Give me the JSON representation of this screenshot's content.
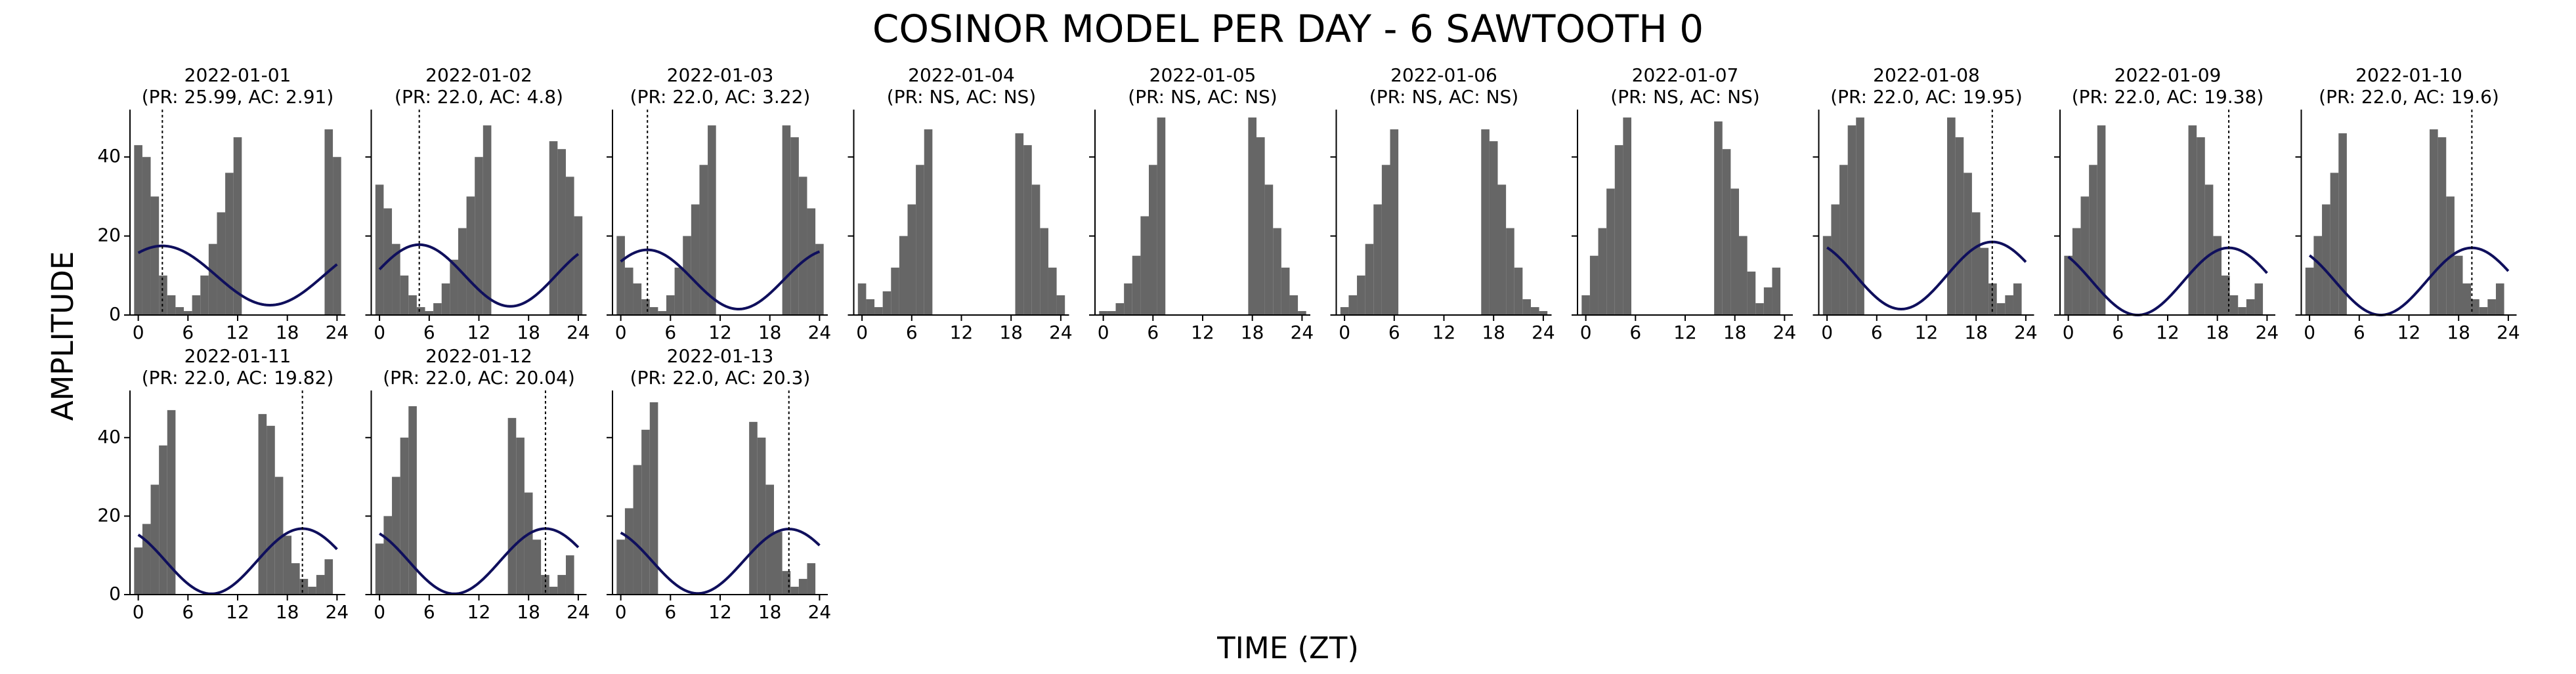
{
  "figure": {
    "title": "COSINOR MODEL PER DAY - 6 SAWTOOTH 0",
    "xlabel": "TIME (ZT)",
    "ylabel": "AMPLITUDE"
  },
  "colors": {
    "bar": "#666666",
    "curve": "#0f0f5c",
    "axis": "#000000",
    "acrophase_line": "#000000"
  },
  "chart_data": [
    {
      "type": "bar",
      "title": "2022-01-01",
      "subtitle": "(PR: 25.99, AC: 2.91)",
      "bars": [
        {
          "x": 0,
          "y": 43
        },
        {
          "x": 1,
          "y": 40
        },
        {
          "x": 2,
          "y": 30
        },
        {
          "x": 3,
          "y": 10
        },
        {
          "x": 4,
          "y": 5
        },
        {
          "x": 5,
          "y": 2
        },
        {
          "x": 6,
          "y": 1
        },
        {
          "x": 7,
          "y": 5
        },
        {
          "x": 8,
          "y": 10
        },
        {
          "x": 9,
          "y": 18
        },
        {
          "x": 10,
          "y": 26
        },
        {
          "x": 11,
          "y": 36
        },
        {
          "x": 12,
          "y": 45
        },
        {
          "x": 23,
          "y": 47
        },
        {
          "x": 24,
          "y": 40
        }
      ],
      "cosinor": {
        "mesor": 10,
        "amplitude": 7.5,
        "acrophase": 2.91,
        "period": 25.99
      },
      "xlim": [
        -1,
        25
      ],
      "ylim": [
        0,
        52
      ],
      "xticks": [
        "0",
        "6",
        "12",
        "18",
        "24"
      ],
      "yticks": [
        "0",
        "20",
        "40"
      ]
    },
    {
      "type": "bar",
      "title": "2022-01-02",
      "subtitle": "(PR: 22.0, AC: 4.8)",
      "bars": [
        {
          "x": 0,
          "y": 33
        },
        {
          "x": 1,
          "y": 27
        },
        {
          "x": 2,
          "y": 18
        },
        {
          "x": 3,
          "y": 10
        },
        {
          "x": 4,
          "y": 5
        },
        {
          "x": 5,
          "y": 2
        },
        {
          "x": 6,
          "y": 1
        },
        {
          "x": 7,
          "y": 3
        },
        {
          "x": 8,
          "y": 8
        },
        {
          "x": 9,
          "y": 14
        },
        {
          "x": 10,
          "y": 22
        },
        {
          "x": 11,
          "y": 30
        },
        {
          "x": 12,
          "y": 40
        },
        {
          "x": 13,
          "y": 48
        },
        {
          "x": 21,
          "y": 44
        },
        {
          "x": 22,
          "y": 42
        },
        {
          "x": 23,
          "y": 35
        },
        {
          "x": 24,
          "y": 25
        }
      ],
      "cosinor": {
        "mesor": 10,
        "amplitude": 7.8,
        "acrophase": 4.8,
        "period": 22.0
      },
      "xlim": [
        -1,
        25
      ],
      "ylim": [
        0,
        52
      ],
      "xticks": [
        "0",
        "6",
        "12",
        "18",
        "24"
      ],
      "yticks": []
    },
    {
      "type": "bar",
      "title": "2022-01-03",
      "subtitle": "(PR: 22.0, AC: 3.22)",
      "bars": [
        {
          "x": 0,
          "y": 20
        },
        {
          "x": 1,
          "y": 12
        },
        {
          "x": 2,
          "y": 8
        },
        {
          "x": 3,
          "y": 4
        },
        {
          "x": 4,
          "y": 2
        },
        {
          "x": 5,
          "y": 1
        },
        {
          "x": 6,
          "y": 5
        },
        {
          "x": 7,
          "y": 12
        },
        {
          "x": 8,
          "y": 20
        },
        {
          "x": 9,
          "y": 28
        },
        {
          "x": 10,
          "y": 38
        },
        {
          "x": 11,
          "y": 48
        },
        {
          "x": 20,
          "y": 48
        },
        {
          "x": 21,
          "y": 45
        },
        {
          "x": 22,
          "y": 35
        },
        {
          "x": 23,
          "y": 27
        },
        {
          "x": 24,
          "y": 18
        }
      ],
      "cosinor": {
        "mesor": 9,
        "amplitude": 7.5,
        "acrophase": 3.22,
        "period": 22.0
      },
      "xlim": [
        -1,
        25
      ],
      "ylim": [
        0,
        52
      ],
      "xticks": [
        "0",
        "6",
        "12",
        "18",
        "24"
      ],
      "yticks": []
    },
    {
      "type": "bar",
      "title": "2022-01-04",
      "subtitle": "(PR: NS, AC: NS)",
      "bars": [
        {
          "x": 0,
          "y": 8
        },
        {
          "x": 1,
          "y": 4
        },
        {
          "x": 2,
          "y": 2
        },
        {
          "x": 3,
          "y": 6
        },
        {
          "x": 4,
          "y": 12
        },
        {
          "x": 5,
          "y": 20
        },
        {
          "x": 6,
          "y": 28
        },
        {
          "x": 7,
          "y": 38
        },
        {
          "x": 8,
          "y": 47
        },
        {
          "x": 19,
          "y": 46
        },
        {
          "x": 20,
          "y": 43
        },
        {
          "x": 21,
          "y": 33
        },
        {
          "x": 22,
          "y": 22
        },
        {
          "x": 23,
          "y": 12
        },
        {
          "x": 24,
          "y": 5
        }
      ],
      "cosinor": null,
      "xlim": [
        -1,
        25
      ],
      "ylim": [
        0,
        52
      ],
      "xticks": [
        "0",
        "6",
        "12",
        "18",
        "24"
      ],
      "yticks": []
    },
    {
      "type": "bar",
      "title": "2022-01-05",
      "subtitle": "(PR: NS, AC: NS)",
      "bars": [
        {
          "x": 0,
          "y": 1
        },
        {
          "x": 1,
          "y": 1
        },
        {
          "x": 2,
          "y": 3
        },
        {
          "x": 3,
          "y": 8
        },
        {
          "x": 4,
          "y": 15
        },
        {
          "x": 5,
          "y": 25
        },
        {
          "x": 6,
          "y": 38
        },
        {
          "x": 7,
          "y": 50
        },
        {
          "x": 18,
          "y": 50
        },
        {
          "x": 19,
          "y": 45
        },
        {
          "x": 20,
          "y": 33
        },
        {
          "x": 21,
          "y": 22
        },
        {
          "x": 22,
          "y": 12
        },
        {
          "x": 23,
          "y": 5
        },
        {
          "x": 24,
          "y": 1
        }
      ],
      "cosinor": null,
      "xlim": [
        -1,
        25
      ],
      "ylim": [
        0,
        52
      ],
      "xticks": [
        "0",
        "6",
        "12",
        "18",
        "24"
      ],
      "yticks": []
    },
    {
      "type": "bar",
      "title": "2022-01-06",
      "subtitle": "(PR: NS, AC: NS)",
      "bars": [
        {
          "x": 0,
          "y": 2
        },
        {
          "x": 1,
          "y": 5
        },
        {
          "x": 2,
          "y": 10
        },
        {
          "x": 3,
          "y": 18
        },
        {
          "x": 4,
          "y": 28
        },
        {
          "x": 5,
          "y": 38
        },
        {
          "x": 6,
          "y": 47
        },
        {
          "x": 17,
          "y": 47
        },
        {
          "x": 18,
          "y": 44
        },
        {
          "x": 19,
          "y": 33
        },
        {
          "x": 20,
          "y": 22
        },
        {
          "x": 21,
          "y": 12
        },
        {
          "x": 22,
          "y": 4
        },
        {
          "x": 23,
          "y": 2
        },
        {
          "x": 24,
          "y": 1
        }
      ],
      "cosinor": null,
      "xlim": [
        -1,
        25
      ],
      "ylim": [
        0,
        52
      ],
      "xticks": [
        "0",
        "6",
        "12",
        "18",
        "24"
      ],
      "yticks": []
    },
    {
      "type": "bar",
      "title": "2022-01-07",
      "subtitle": "(PR: NS, AC: NS)",
      "bars": [
        {
          "x": 0,
          "y": 5
        },
        {
          "x": 1,
          "y": 15
        },
        {
          "x": 2,
          "y": 22
        },
        {
          "x": 3,
          "y": 32
        },
        {
          "x": 4,
          "y": 43
        },
        {
          "x": 5,
          "y": 50
        },
        {
          "x": 16,
          "y": 49
        },
        {
          "x": 17,
          "y": 42
        },
        {
          "x": 18,
          "y": 32
        },
        {
          "x": 19,
          "y": 20
        },
        {
          "x": 20,
          "y": 11
        },
        {
          "x": 21,
          "y": 3
        },
        {
          "x": 22,
          "y": 7
        },
        {
          "x": 23,
          "y": 12
        }
      ],
      "cosinor": null,
      "xlim": [
        -1,
        25
      ],
      "ylim": [
        0,
        52
      ],
      "xticks": [
        "0",
        "6",
        "12",
        "18",
        "24"
      ],
      "yticks": []
    },
    {
      "type": "bar",
      "title": "2022-01-08",
      "subtitle": "(PR: 22.0, AC: 19.95)",
      "bars": [
        {
          "x": 0,
          "y": 20
        },
        {
          "x": 1,
          "y": 28
        },
        {
          "x": 2,
          "y": 38
        },
        {
          "x": 3,
          "y": 48
        },
        {
          "x": 4,
          "y": 50
        },
        {
          "x": 15,
          "y": 50
        },
        {
          "x": 16,
          "y": 45
        },
        {
          "x": 17,
          "y": 36
        },
        {
          "x": 18,
          "y": 26
        },
        {
          "x": 19,
          "y": 17
        },
        {
          "x": 20,
          "y": 8
        },
        {
          "x": 21,
          "y": 3
        },
        {
          "x": 22,
          "y": 5
        },
        {
          "x": 23,
          "y": 8
        }
      ],
      "cosinor": {
        "mesor": 10,
        "amplitude": 8.5,
        "acrophase": 19.95,
        "period": 22.0
      },
      "xlim": [
        -1,
        25
      ],
      "ylim": [
        0,
        52
      ],
      "xticks": [
        "0",
        "6",
        "12",
        "18",
        "24"
      ],
      "yticks": []
    },
    {
      "type": "bar",
      "title": "2022-01-09",
      "subtitle": "(PR: 22.0, AC: 19.38)",
      "bars": [
        {
          "x": 0,
          "y": 15
        },
        {
          "x": 1,
          "y": 22
        },
        {
          "x": 2,
          "y": 30
        },
        {
          "x": 3,
          "y": 38
        },
        {
          "x": 4,
          "y": 48
        },
        {
          "x": 15,
          "y": 48
        },
        {
          "x": 16,
          "y": 45
        },
        {
          "x": 17,
          "y": 33
        },
        {
          "x": 18,
          "y": 20
        },
        {
          "x": 19,
          "y": 10
        },
        {
          "x": 20,
          "y": 5
        },
        {
          "x": 21,
          "y": 2
        },
        {
          "x": 22,
          "y": 4
        },
        {
          "x": 23,
          "y": 8
        }
      ],
      "cosinor": {
        "mesor": 8.5,
        "amplitude": 8.5,
        "acrophase": 19.38,
        "period": 22.0
      },
      "xlim": [
        -1,
        25
      ],
      "ylim": [
        0,
        52
      ],
      "xticks": [
        "0",
        "6",
        "12",
        "18",
        "24"
      ],
      "yticks": []
    },
    {
      "type": "bar",
      "title": "2022-01-10",
      "subtitle": "(PR: 22.0, AC: 19.6)",
      "bars": [
        {
          "x": 0,
          "y": 12
        },
        {
          "x": 1,
          "y": 20
        },
        {
          "x": 2,
          "y": 28
        },
        {
          "x": 3,
          "y": 36
        },
        {
          "x": 4,
          "y": 46
        },
        {
          "x": 15,
          "y": 47
        },
        {
          "x": 16,
          "y": 45
        },
        {
          "x": 17,
          "y": 30
        },
        {
          "x": 18,
          "y": 15
        },
        {
          "x": 19,
          "y": 8
        },
        {
          "x": 20,
          "y": 4
        },
        {
          "x": 21,
          "y": 2
        },
        {
          "x": 22,
          "y": 4
        },
        {
          "x": 23,
          "y": 8
        }
      ],
      "cosinor": {
        "mesor": 8.5,
        "amplitude": 8.5,
        "acrophase": 19.6,
        "period": 22.0
      },
      "xlim": [
        -1,
        25
      ],
      "ylim": [
        0,
        52
      ],
      "xticks": [
        "0",
        "6",
        "12",
        "18",
        "24"
      ],
      "yticks": []
    },
    {
      "type": "bar",
      "title": "2022-01-11",
      "subtitle": "(PR: 22.0, AC: 19.82)",
      "bars": [
        {
          "x": 0,
          "y": 12
        },
        {
          "x": 1,
          "y": 18
        },
        {
          "x": 2,
          "y": 28
        },
        {
          "x": 3,
          "y": 38
        },
        {
          "x": 4,
          "y": 47
        },
        {
          "x": 15,
          "y": 46
        },
        {
          "x": 16,
          "y": 43
        },
        {
          "x": 17,
          "y": 30
        },
        {
          "x": 18,
          "y": 15
        },
        {
          "x": 19,
          "y": 8
        },
        {
          "x": 20,
          "y": 4
        },
        {
          "x": 21,
          "y": 2
        },
        {
          "x": 22,
          "y": 5
        },
        {
          "x": 23,
          "y": 9
        }
      ],
      "cosinor": {
        "mesor": 8.5,
        "amplitude": 8.3,
        "acrophase": 19.82,
        "period": 22.0
      },
      "xlim": [
        -1,
        25
      ],
      "ylim": [
        0,
        52
      ],
      "xticks": [
        "0",
        "6",
        "12",
        "18",
        "24"
      ],
      "yticks": [
        "0",
        "20",
        "40"
      ]
    },
    {
      "type": "bar",
      "title": "2022-01-12",
      "subtitle": "(PR: 22.0, AC: 20.04)",
      "bars": [
        {
          "x": 0,
          "y": 13
        },
        {
          "x": 1,
          "y": 20
        },
        {
          "x": 2,
          "y": 30
        },
        {
          "x": 3,
          "y": 40
        },
        {
          "x": 4,
          "y": 48
        },
        {
          "x": 16,
          "y": 45
        },
        {
          "x": 17,
          "y": 40
        },
        {
          "x": 18,
          "y": 26
        },
        {
          "x": 19,
          "y": 14
        },
        {
          "x": 20,
          "y": 5
        },
        {
          "x": 21,
          "y": 2
        },
        {
          "x": 22,
          "y": 5
        },
        {
          "x": 23,
          "y": 10
        }
      ],
      "cosinor": {
        "mesor": 8.5,
        "amplitude": 8.3,
        "acrophase": 20.04,
        "period": 22.0
      },
      "xlim": [
        -1,
        25
      ],
      "ylim": [
        0,
        52
      ],
      "xticks": [
        "0",
        "6",
        "12",
        "18",
        "24"
      ],
      "yticks": []
    },
    {
      "type": "bar",
      "title": "2022-01-13",
      "subtitle": "(PR: 22.0, AC: 20.3)",
      "bars": [
        {
          "x": 0,
          "y": 14
        },
        {
          "x": 1,
          "y": 22
        },
        {
          "x": 2,
          "y": 33
        },
        {
          "x": 3,
          "y": 42
        },
        {
          "x": 4,
          "y": 49
        },
        {
          "x": 16,
          "y": 44
        },
        {
          "x": 17,
          "y": 40
        },
        {
          "x": 18,
          "y": 28
        },
        {
          "x": 19,
          "y": 16
        },
        {
          "x": 20,
          "y": 6
        },
        {
          "x": 21,
          "y": 2
        },
        {
          "x": 22,
          "y": 4
        },
        {
          "x": 23,
          "y": 8
        }
      ],
      "cosinor": {
        "mesor": 8.5,
        "amplitude": 8.2,
        "acrophase": 20.3,
        "period": 22.0
      },
      "xlim": [
        -1,
        25
      ],
      "ylim": [
        0,
        52
      ],
      "xticks": [
        "0",
        "6",
        "12",
        "18",
        "24"
      ],
      "yticks": []
    }
  ]
}
